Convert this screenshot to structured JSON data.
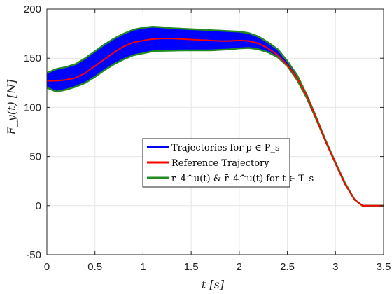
{
  "chart_data": {
    "type": "area",
    "xlabel": "t [s]",
    "ylabel": "F_y(t) [N]",
    "xlim": [
      0,
      3.5
    ],
    "ylim": [
      -50,
      200
    ],
    "xticks": [
      0,
      0.5,
      1,
      1.5,
      2,
      2.5,
      3,
      3.5
    ],
    "yticks": [
      -50,
      0,
      50,
      100,
      150,
      200
    ],
    "xtick_labels": [
      "0",
      "0.5",
      "1",
      "1.5",
      "2",
      "2.5",
      "3",
      "3.5"
    ],
    "ytick_labels": [
      "-50",
      "0",
      "50",
      "100",
      "150",
      "200"
    ],
    "grid": true,
    "legend_position": "center",
    "colors": {
      "band": "#0000ff",
      "reference": "#ff0000",
      "bounds": "#228b22",
      "grid": "#e6e6e6",
      "axis": "#262626"
    },
    "series": [
      {
        "name": "Trajectories for p ∈ P_s",
        "kind": "band",
        "x": [
          0,
          0.1,
          0.2,
          0.3,
          0.4,
          0.5,
          0.6,
          0.7,
          0.8,
          0.9,
          1.0,
          1.1,
          1.2,
          1.3,
          1.4,
          1.5,
          1.6,
          1.7,
          1.8,
          1.9,
          2.0,
          2.1,
          2.2,
          2.3,
          2.4,
          2.5,
          2.6,
          2.7,
          2.8,
          2.9,
          3.0,
          3.1,
          3.2,
          3.28,
          3.3,
          3.35,
          3.4,
          3.5
        ],
        "lower": [
          120,
          116,
          118,
          121,
          125,
          131,
          138,
          144,
          149,
          153,
          155,
          157,
          157.5,
          157.7,
          158,
          158,
          158,
          158,
          158.5,
          159,
          160,
          160.5,
          159,
          156,
          151,
          142,
          128,
          110,
          88,
          65,
          43,
          22,
          6,
          0,
          0,
          0,
          0,
          0
        ],
        "upper": [
          135,
          139,
          141,
          144,
          150,
          157,
          164,
          170,
          175,
          179,
          181,
          182,
          181.5,
          180.5,
          180,
          179.5,
          179,
          178.5,
          178,
          177.5,
          177,
          175.5,
          172,
          166,
          159,
          147,
          133,
          113,
          90,
          66,
          44,
          23,
          6,
          0,
          0,
          0,
          0,
          0
        ]
      },
      {
        "name": "Reference Trajectory",
        "kind": "line",
        "x": [
          0,
          0.1,
          0.2,
          0.3,
          0.4,
          0.5,
          0.6,
          0.7,
          0.8,
          0.9,
          1.0,
          1.1,
          1.2,
          1.3,
          1.4,
          1.5,
          1.6,
          1.7,
          1.8,
          1.9,
          2.0,
          2.1,
          2.2,
          2.3,
          2.4,
          2.5,
          2.6,
          2.7,
          2.8,
          2.9,
          3.0,
          3.1,
          3.2,
          3.28,
          3.3,
          3.35,
          3.4,
          3.5
        ],
        "values": [
          127,
          127,
          128,
          130,
          135,
          142,
          149,
          156,
          162,
          166,
          168,
          169.5,
          170,
          170,
          169.5,
          169,
          168.5,
          168,
          167.5,
          167.5,
          168,
          167.5,
          165,
          160,
          153,
          143,
          130,
          112,
          89,
          65,
          43,
          22,
          6,
          0,
          0,
          0,
          0,
          0
        ]
      },
      {
        "name": "r_4^u(t) & r̄_4^u(t) for t ∈ T_s",
        "kind": "bounds",
        "x": [
          0,
          0.1,
          0.2,
          0.3,
          0.4,
          0.5,
          0.6,
          0.7,
          0.8,
          0.9,
          1.0,
          1.1,
          1.2,
          1.3,
          1.4,
          1.5,
          1.6,
          1.7,
          1.8,
          1.9,
          2.0,
          2.1,
          2.2,
          2.3,
          2.4,
          2.5,
          2.6,
          2.7,
          2.8,
          2.9,
          3.0,
          3.1,
          3.2,
          3.28,
          3.3,
          3.35,
          3.4,
          3.5
        ],
        "lower": [
          120,
          116,
          118,
          121,
          125,
          131,
          138,
          144,
          149,
          153,
          155,
          157,
          157.5,
          157.7,
          158,
          158,
          158,
          158,
          158.5,
          159,
          160,
          160.5,
          159,
          156,
          151,
          142,
          128,
          110,
          88,
          65,
          43,
          22,
          6,
          0,
          0,
          0,
          0,
          0
        ],
        "upper": [
          135,
          139,
          141,
          144,
          150,
          157,
          164,
          170,
          175,
          179,
          181,
          182,
          181.5,
          180.5,
          180,
          179.5,
          179,
          178.5,
          178,
          177.5,
          177,
          175.5,
          172,
          166,
          159,
          147,
          133,
          113,
          90,
          66,
          44,
          23,
          6,
          0,
          0,
          0,
          0,
          0
        ]
      }
    ]
  }
}
